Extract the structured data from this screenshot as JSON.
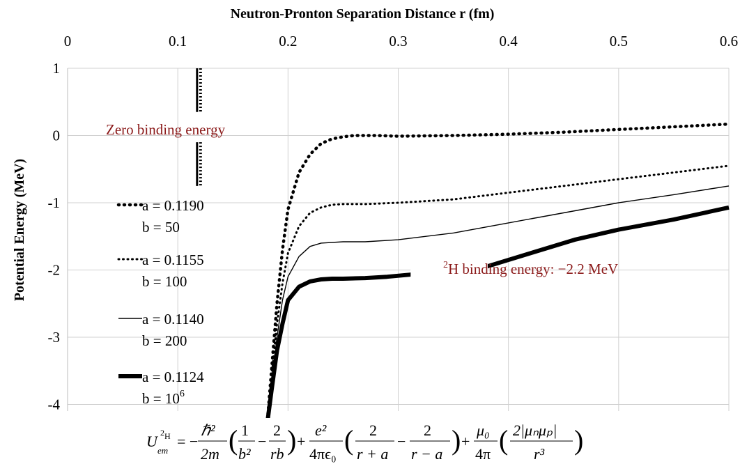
{
  "chart_data": {
    "type": "line",
    "title": "",
    "xlabel": "Neutron-Pronton Separation Distance r (fm)",
    "ylabel": "Potential Energy (MeV)",
    "x_axis_position": "top",
    "xlim": [
      0,
      0.6
    ],
    "ylim": [
      -4.3,
      1.0
    ],
    "xticks": [
      "0",
      "0.1",
      "0.2",
      "0.3",
      "0.4",
      "0.5",
      "0.6"
    ],
    "yticks": [
      "1",
      "0",
      "-1",
      "-2",
      "-3",
      "-4"
    ],
    "grid": true,
    "legend_position": "left",
    "series": [
      {
        "label_a": "a = 0.1190",
        "label_b": "b = 50",
        "style": "dotted-heavy",
        "x": [
          0.181,
          0.185,
          0.19,
          0.195,
          0.2,
          0.21,
          0.22,
          0.23,
          0.24,
          0.25,
          0.26,
          0.28,
          0.3,
          0.35,
          0.4,
          0.45,
          0.5,
          0.55,
          0.6
        ],
        "y": [
          -4.3,
          -3.5,
          -2.5,
          -1.7,
          -1.1,
          -0.55,
          -0.28,
          -0.12,
          -0.05,
          -0.02,
          0.0,
          0.0,
          -0.01,
          0.0,
          0.02,
          0.05,
          0.09,
          0.13,
          0.17
        ]
      },
      {
        "label_a": "a = 0.1155",
        "label_b": "b = 100",
        "style": "dotted",
        "x": [
          0.181,
          0.185,
          0.19,
          0.195,
          0.2,
          0.21,
          0.22,
          0.23,
          0.24,
          0.25,
          0.27,
          0.3,
          0.35,
          0.4,
          0.45,
          0.5,
          0.55,
          0.6
        ],
        "y": [
          -4.3,
          -3.6,
          -2.8,
          -2.2,
          -1.75,
          -1.35,
          -1.15,
          -1.07,
          -1.03,
          -1.02,
          -1.02,
          -1.0,
          -0.95,
          -0.85,
          -0.75,
          -0.65,
          -0.55,
          -0.45
        ]
      },
      {
        "label_a": "a = 0.1140",
        "label_b": "b = 200",
        "style": "thin",
        "x": [
          0.181,
          0.185,
          0.19,
          0.195,
          0.2,
          0.21,
          0.22,
          0.23,
          0.25,
          0.27,
          0.3,
          0.35,
          0.4,
          0.45,
          0.5,
          0.55,
          0.6
        ],
        "y": [
          -4.3,
          -3.7,
          -3.0,
          -2.45,
          -2.1,
          -1.8,
          -1.65,
          -1.6,
          -1.58,
          -1.58,
          -1.55,
          -1.45,
          -1.3,
          -1.15,
          -1.0,
          -0.88,
          -0.75
        ]
      },
      {
        "label_a": "a = 0.1124",
        "label_b": "b = 106",
        "style": "thick",
        "x": [
          0.181,
          0.185,
          0.19,
          0.195,
          0.2,
          0.21,
          0.22,
          0.23,
          0.24,
          0.25,
          0.27,
          0.29,
          0.31,
          0.38,
          0.42,
          0.46,
          0.5,
          0.55,
          0.6
        ],
        "y": [
          -4.3,
          -3.8,
          -3.2,
          -2.8,
          -2.45,
          -2.25,
          -2.17,
          -2.14,
          -2.13,
          -2.13,
          -2.12,
          -2.1,
          -2.07,
          -1.95,
          -1.75,
          -1.55,
          -1.4,
          -1.25,
          -1.07
        ]
      }
    ],
    "annotations": {
      "zero_binding": "Zero binding energy",
      "h2_binding_sup": "2",
      "h2_binding_text": "H binding energy: −2.2 MeV",
      "zero_marker_x": 0.12
    },
    "colors": {
      "annotation": "#8b1a1a",
      "grid": "#d0d0d0",
      "line": "#000000"
    }
  },
  "formula": {
    "U": "U",
    "sub": "em",
    "sup_2": "2",
    "sup_H": "H",
    "hbar2": "ℏ²",
    "two_m": "2m",
    "one": "1",
    "b2": "b²",
    "two": "2",
    "rb": "rb",
    "e2": "e²",
    "four_pi_eps": "4πϵ₀",
    "r_plus_a": "r + a",
    "r_minus_a": "r − a",
    "mu0": "μ₀",
    "four_pi": "4π",
    "mu_abs": "2|μₙμₚ|",
    "r3": "r³"
  }
}
